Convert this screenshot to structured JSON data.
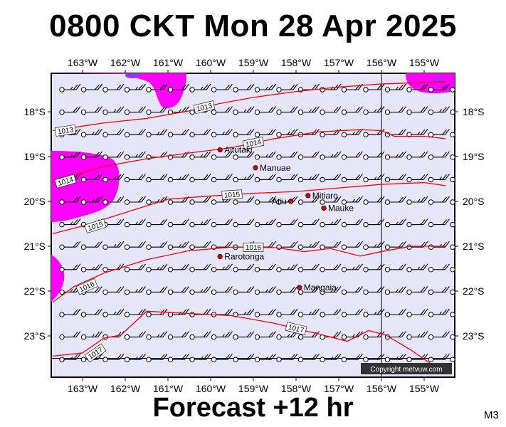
{
  "title": "0800 CKT Mon 28 Apr 2025",
  "footer": "Forecast +12 hr",
  "model": "M3",
  "copyright": "Copyright metvuw.com",
  "lon_labels": [
    "163°W",
    "162°W",
    "161°W",
    "160°W",
    "159°W",
    "158°W",
    "157°W",
    "156°W",
    "155°W"
  ],
  "lon_values": [
    -163,
    -162,
    -161,
    -160,
    -159,
    -158,
    -157,
    -156,
    -155
  ],
  "lat_labels": [
    "18°S",
    "19°S",
    "20°S",
    "21°S",
    "22°S",
    "23°S"
  ],
  "lat_values": [
    -18,
    -19,
    -20,
    -21,
    -22,
    -23
  ],
  "places": [
    {
      "name": "Aitutaki",
      "lon": -159.78,
      "lat": -18.85
    },
    {
      "name": "Manuae",
      "lon": -158.95,
      "lat": -19.25
    },
    {
      "name": "Mitiaro",
      "lon": -157.72,
      "lat": -19.87
    },
    {
      "name": "Atiu",
      "lon": -158.12,
      "lat": -20.0
    },
    {
      "name": "Mauke",
      "lon": -157.35,
      "lat": -20.15
    },
    {
      "name": "Rarotonga",
      "lon": -159.78,
      "lat": -21.23
    },
    {
      "name": "Mangaia",
      "lon": -157.92,
      "lat": -21.92
    }
  ],
  "isobars": [
    {
      "label": "1013",
      "points": [
        [
          -163.7,
          -18.42
        ],
        [
          -162.5,
          -18.25
        ],
        [
          -161.5,
          -18.15
        ],
        [
          -160.5,
          -17.98
        ],
        [
          -159.8,
          -17.82
        ],
        [
          -159.0,
          -17.68
        ],
        [
          -158.0,
          -17.55
        ],
        [
          -157.0,
          -17.45
        ],
        [
          -156.0,
          -17.38
        ],
        [
          -155.0,
          -17.35
        ],
        [
          -154.5,
          -17.33
        ]
      ]
    },
    {
      "label": "1014",
      "points": [
        [
          -163.7,
          -19.55
        ],
        [
          -162.5,
          -19.22
        ],
        [
          -161.5,
          -19.05
        ],
        [
          -160.5,
          -18.92
        ],
        [
          -159.5,
          -18.8
        ],
        [
          -158.5,
          -18.6
        ],
        [
          -157.5,
          -18.45
        ],
        [
          -156.5,
          -18.4
        ],
        [
          -156.0,
          -18.42
        ],
        [
          -155.7,
          -18.55
        ],
        [
          -155.0,
          -18.55
        ],
        [
          -154.5,
          -18.6
        ]
      ]
    },
    {
      "label": "1015",
      "points": [
        [
          -163.7,
          -20.72
        ],
        [
          -163.0,
          -20.55
        ],
        [
          -162.0,
          -20.25
        ],
        [
          -161.0,
          -19.95
        ],
        [
          -160.0,
          -19.88
        ],
        [
          -159.0,
          -19.82
        ],
        [
          -158.0,
          -19.78
        ],
        [
          -157.0,
          -19.7
        ],
        [
          -156.0,
          -19.62
        ],
        [
          -155.0,
          -19.58
        ],
        [
          -154.5,
          -19.65
        ]
      ]
    },
    {
      "label": "1016",
      "points": [
        [
          -163.7,
          -22.25
        ],
        [
          -163.2,
          -21.9
        ],
        [
          -162.5,
          -21.6
        ],
        [
          -161.5,
          -21.3
        ],
        [
          -160.5,
          -21.1
        ],
        [
          -159.5,
          -21.02
        ],
        [
          -158.5,
          -21.03
        ],
        [
          -157.8,
          -21.12
        ],
        [
          -157.2,
          -21.05
        ],
        [
          -156.5,
          -21.22
        ],
        [
          -156.0,
          -21.12
        ],
        [
          -155.3,
          -21.0
        ],
        [
          -154.5,
          -21.0
        ]
      ]
    },
    {
      "label": "1017",
      "points": [
        [
          -163.7,
          -23.45
        ],
        [
          -163.0,
          -23.38
        ],
        [
          -162.5,
          -23.05
        ],
        [
          -162.1,
          -22.98
        ],
        [
          -161.5,
          -22.45
        ],
        [
          -160.5,
          -22.5
        ],
        [
          -159.5,
          -22.55
        ],
        [
          -158.5,
          -22.72
        ],
        [
          -157.5,
          -22.95
        ],
        [
          -156.8,
          -23.12
        ],
        [
          -156.3,
          -22.88
        ],
        [
          -155.9,
          -22.98
        ],
        [
          -155.3,
          -23.32
        ],
        [
          -154.8,
          -23.65
        ],
        [
          -154.5,
          -23.65
        ]
      ]
    }
  ],
  "colors": {
    "land_bg": "#e6e6fa",
    "rain": "#ff00ff",
    "rain_core": "#9933ff",
    "isobar": "#ff0000",
    "place": "#cc0000"
  }
}
